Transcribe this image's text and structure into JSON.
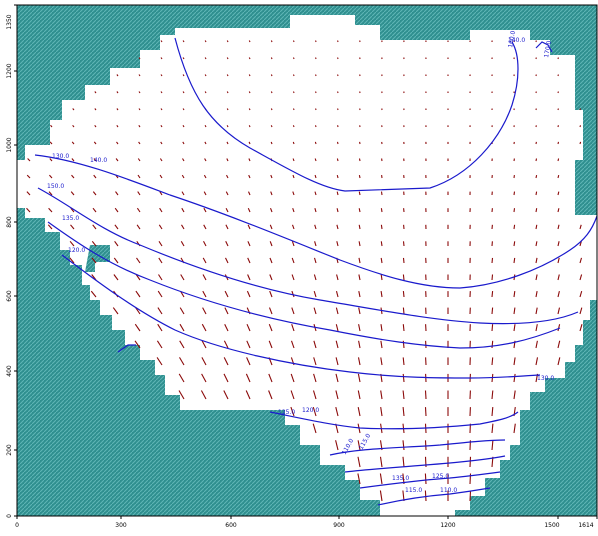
{
  "axes": {
    "x_ticks": [
      "0",
      "300",
      "600",
      "900",
      "1200",
      "1500",
      "1614"
    ],
    "y_ticks": [
      "0",
      "200",
      "400",
      "600",
      "800",
      "1000",
      "1200",
      "1350"
    ]
  },
  "contour_labels": [
    "140.0",
    "130.0",
    "140.0",
    "150.0",
    "135.0",
    "120.0",
    "130.0",
    "125.0",
    "120.0",
    "110.0",
    "115.0",
    "135.0",
    "125.0",
    "115.0",
    "110.0",
    "160.0",
    "170.0"
  ],
  "colors": {
    "mask": "#2f8f8f",
    "mask_pattern": "#5fb6b6",
    "contour": "#1a1acc",
    "vector": "#8b0a0a",
    "axis": "#000000"
  }
}
